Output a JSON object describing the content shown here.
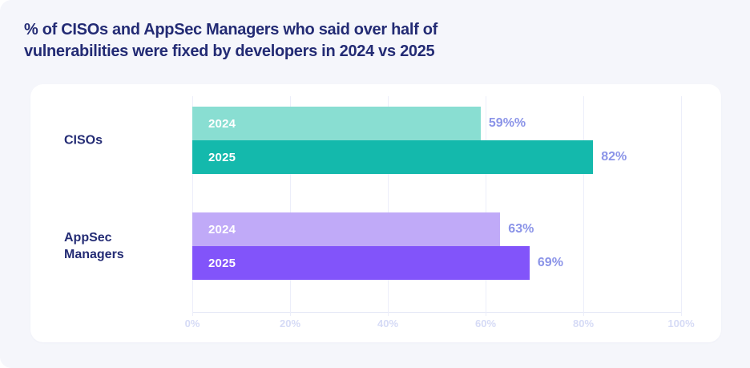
{
  "title": {
    "lines": [
      "% of CISOs and AppSec Managers who said over half of",
      "vulnerabilities were fixed by developers in 2024 vs 2025"
    ],
    "full": "% of CISOs and AppSec Managers who said over half of vulnerabilities were fixed by developers in 2024 vs 2025"
  },
  "chart_data": {
    "type": "bar",
    "orientation": "horizontal",
    "categories": [
      "CISOs",
      "AppSec Managers"
    ],
    "series": [
      {
        "name": "2024",
        "values": [
          59,
          63
        ],
        "value_labels": [
          "59%%",
          "63%"
        ],
        "colors": [
          "#89ded2",
          "#c0aaf8"
        ]
      },
      {
        "name": "2025",
        "values": [
          82,
          69
        ],
        "value_labels": [
          "82%",
          "69%"
        ],
        "colors": [
          "#14b9ac",
          "#8254fa"
        ]
      }
    ],
    "xlim": [
      0,
      100
    ],
    "x_ticks": [
      "0%",
      "20%",
      "40%",
      "60%",
      "80%",
      "100%"
    ],
    "grid": true,
    "legend_position": "inside-bars",
    "value_label_color": "#8b94e8",
    "tick_label_color": "#d6dbf6"
  },
  "colors": {
    "page_background": "#ffffff",
    "panel_background": "#f5f6fb",
    "card_background": "#ffffff",
    "title_text": "#232b74",
    "category_text": "#232b74",
    "gridline": "#eceefa",
    "axis_line": "#e2e6f5",
    "teal_light": "#89ded2",
    "teal_dark": "#14b9ac",
    "purple_light": "#c0aaf8",
    "purple_dark": "#8254fa"
  }
}
